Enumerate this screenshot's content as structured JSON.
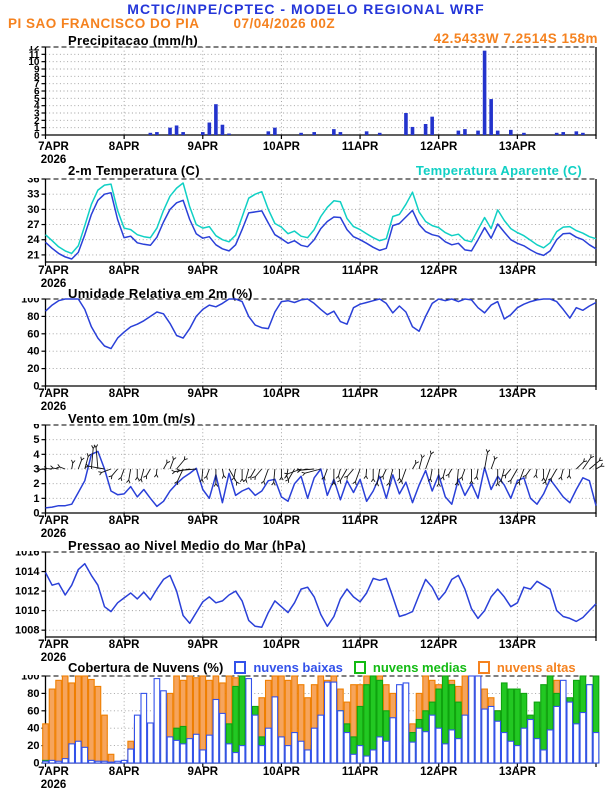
{
  "header": {
    "title": "MCTIC/INPE/CPTEC - MODELO REGIONAL WRF",
    "station": "PI SAO FRANCISCO DO PIA",
    "run": "07/04/2026 00Z",
    "location": "42.5433W 7.2514S 158m"
  },
  "colors": {
    "header_blue": "#2436d9",
    "orange_text": "#f5821f",
    "line_blue": "#2a40d8",
    "cyan": "#10d0c4",
    "bar_blue": "#2333cc",
    "cloud_low_border": "#3352ea",
    "cloud_mid_border": "#0fa30f",
    "cloud_mid_fill": "#22c822",
    "cloud_high_border": "#ef7f00",
    "cloud_high_fill": "#f6a45c",
    "grid": "#9b9b9b",
    "frame": "#000000"
  },
  "x_axis": {
    "labels": [
      "7APR",
      "8APR",
      "9APR",
      "10APR",
      "11APR",
      "12APR",
      "13APR"
    ],
    "year": "2026",
    "span_hours": 168,
    "step_hours": 2
  },
  "chart_data": [
    {
      "id": "precipitation",
      "type": "bar",
      "title": "Precipitacao (mm/h)",
      "ylabel": "mm/h",
      "ylim": [
        0,
        12
      ],
      "yticks": [
        0,
        1,
        2,
        3,
        4,
        5,
        6,
        7,
        8,
        9,
        10,
        11,
        12
      ],
      "bar_color": "#2333cc",
      "values": [
        0,
        0,
        0,
        0,
        0,
        0,
        0,
        0,
        0,
        0,
        0,
        0,
        0,
        0,
        0,
        0,
        0.3,
        0.4,
        0,
        1.0,
        1.3,
        0.4,
        0,
        0,
        0.4,
        1.7,
        4.2,
        1.4,
        0.2,
        0,
        0,
        0,
        0,
        0,
        0.5,
        1.0,
        0,
        0,
        0,
        0.3,
        0,
        0.4,
        0,
        0,
        0.8,
        0.4,
        0,
        0,
        0,
        0.5,
        0,
        0.3,
        0,
        0,
        0,
        3.0,
        1.1,
        0,
        1.5,
        2.5,
        0,
        0,
        0,
        0.6,
        0.8,
        0,
        0.6,
        11.5,
        4.9,
        0.6,
        0,
        0.7,
        0,
        0.3,
        0,
        0,
        0,
        0,
        0.3,
        0.4,
        0,
        0.5,
        0.3,
        0,
        0
      ]
    },
    {
      "id": "temperature",
      "type": "line",
      "title": "2-m Temperatura (C)",
      "right_label": "Temperatura Aparente (C)",
      "ylim": [
        19.6,
        36
      ],
      "yticks": [
        21,
        24,
        27,
        30,
        33,
        36
      ],
      "series": [
        {
          "name": "2-m Temperatura (C)",
          "color": "#2a40d8",
          "values": [
            23.5,
            22.3,
            21.3,
            20.6,
            20.2,
            21.5,
            25.0,
            29.0,
            31.8,
            33.0,
            33.3,
            28.0,
            24.4,
            24.7,
            23.4,
            23.1,
            22.9,
            24.5,
            27.5,
            30.0,
            31.3,
            31.8,
            28.0,
            25.2,
            24.3,
            24.6,
            23.0,
            22.2,
            21.8,
            23.0,
            26.0,
            29.3,
            29.5,
            29.7,
            27.3,
            25.0,
            24.2,
            23.3,
            23.8,
            22.9,
            22.6,
            24.0,
            26.2,
            27.6,
            28.5,
            28.4,
            26.0,
            24.6,
            24.0,
            23.3,
            22.5,
            21.9,
            22.3,
            26.8,
            27.2,
            28.5,
            29.8,
            27.0,
            25.6,
            25.0,
            24.7,
            23.6,
            23.0,
            23.3,
            22.0,
            21.8,
            24.0,
            26.4,
            24.3,
            27.1,
            25.5,
            24.0,
            23.3,
            22.8,
            22.0,
            21.3,
            20.9,
            21.8,
            24.0,
            25.2,
            25.3,
            24.5,
            24.0,
            23.0,
            22.2
          ]
        },
        {
          "name": "Temperatura Aparente (C)",
          "color": "#10d0c4",
          "values": [
            25.0,
            23.8,
            22.6,
            21.8,
            21.3,
            22.8,
            26.8,
            31.0,
            33.8,
            34.8,
            35.0,
            29.8,
            26.3,
            26.0,
            25.0,
            24.6,
            24.4,
            26.3,
            29.8,
            32.6,
            34.2,
            35.2,
            30.5,
            27.0,
            26.3,
            26.6,
            24.8,
            24.0,
            23.6,
            24.9,
            28.5,
            32.2,
            33.0,
            33.5,
            30.0,
            27.2,
            26.5,
            25.2,
            25.7,
            24.7,
            24.4,
            26.0,
            28.6,
            30.4,
            31.7,
            31.5,
            28.2,
            26.6,
            26.0,
            25.2,
            24.4,
            23.8,
            24.2,
            28.6,
            29.0,
            31.0,
            33.4,
            29.5,
            27.6,
            26.8,
            26.4,
            25.4,
            24.8,
            25.1,
            23.9,
            23.6,
            26.0,
            28.4,
            26.2,
            29.9,
            27.8,
            26.2,
            25.4,
            24.8,
            23.9,
            23.0,
            22.4,
            23.4,
            25.6,
            26.5,
            26.6,
            25.8,
            25.3,
            24.6,
            24.2
          ]
        }
      ]
    },
    {
      "id": "humidity",
      "type": "line",
      "title": "Umidade Relativa em 2m (%)",
      "ylim": [
        0,
        100
      ],
      "yticks": [
        0,
        20,
        40,
        60,
        80,
        100
      ],
      "series": [
        {
          "name": "Umidade Relativa em 2m (%)",
          "color": "#2a40d8",
          "values": [
            86,
            93,
            98,
            100,
            100,
            100,
            88,
            68,
            55,
            46,
            43,
            55,
            62,
            68,
            71,
            75,
            80,
            85,
            83,
            72,
            58,
            55,
            66,
            80,
            88,
            93,
            91,
            95,
            100,
            100,
            97,
            80,
            70,
            67,
            66,
            85,
            97,
            98,
            96,
            99,
            100,
            95,
            88,
            82,
            86,
            74,
            71,
            90,
            94,
            96,
            98,
            100,
            95,
            84,
            92,
            85,
            68,
            63,
            80,
            95,
            100,
            98,
            100,
            97,
            100,
            99,
            90,
            84,
            93,
            97,
            77,
            82,
            90,
            94,
            97,
            99,
            100,
            100,
            97,
            88,
            78,
            90,
            87,
            92,
            96
          ]
        }
      ]
    },
    {
      "id": "wind",
      "type": "wind",
      "title": "Vento em 10m (m/s)",
      "ylim": [
        0,
        6
      ],
      "yticks": [
        0,
        1,
        2,
        3,
        4,
        5,
        6
      ],
      "line_color": "#2a40d8",
      "arrow_color": "#111111",
      "arrow_base": 3,
      "speed": [
        0.35,
        0.4,
        0.5,
        0.5,
        0.6,
        1.4,
        2.2,
        4.0,
        4.2,
        3.0,
        1.5,
        1.25,
        1.3,
        1.8,
        1.1,
        1.6,
        1.0,
        0.45,
        0.8,
        1.5,
        2.0,
        2.4,
        2.7,
        3.05,
        1.6,
        1.0,
        2.6,
        0.7,
        2.7,
        1.2,
        1.5,
        1.7,
        1.2,
        1.5,
        2.2,
        2.3,
        1.1,
        0.8,
        2.0,
        2.5,
        1.0,
        2.4,
        3.0,
        1.2,
        2.3,
        0.9,
        2.2,
        1.4,
        2.3,
        0.8,
        1.5,
        2.5,
        1.0,
        2.6,
        1.3,
        2.1,
        0.7,
        1.9,
        2.9,
        1.5,
        2.6,
        1.1,
        0.6,
        2.3,
        1.2,
        2.0,
        1.0,
        3.1,
        1.6,
        2.5,
        1.9,
        1.0,
        2.2,
        2.4,
        1.0,
        0.6,
        1.3,
        2.3,
        1.7,
        1.1,
        0.7,
        1.6,
        2.4,
        2.2,
        0.5
      ],
      "dir_deg": [
        185,
        175,
        170,
        160,
        80,
        70,
        75,
        85,
        95,
        170,
        200,
        230,
        250,
        260,
        270,
        255,
        240,
        265,
        60,
        70,
        50,
        245,
        190,
        185,
        265,
        250,
        270,
        280,
        300,
        260,
        270,
        255,
        240,
        230,
        250,
        265,
        270,
        260,
        240,
        200,
        190,
        185,
        195,
        250,
        270,
        255,
        240,
        230,
        250,
        265,
        270,
        260,
        245,
        255,
        270,
        250,
        60,
        75,
        70,
        260,
        270,
        255,
        240,
        265,
        250,
        270,
        260,
        80,
        70,
        270,
        255,
        230,
        240,
        250,
        235,
        260,
        270,
        250,
        240,
        255,
        265,
        45,
        55,
        40,
        30
      ]
    },
    {
      "id": "pressure",
      "type": "line",
      "title": "Pressao ao Nivel Medio do Mar (hPa)",
      "ylim": [
        1007.3,
        1016
      ],
      "yticks": [
        1008,
        1010,
        1012,
        1014,
        1016
      ],
      "series": [
        {
          "name": "Pressao ao Nivel Medio do Mar (hPa)",
          "color": "#2a40d8",
          "values": [
            1013.9,
            1012.6,
            1012.8,
            1011.6,
            1012.6,
            1014.2,
            1014.8,
            1013.6,
            1012.6,
            1010.4,
            1009.9,
            1010.8,
            1011.3,
            1011.8,
            1011.2,
            1011.9,
            1011.1,
            1012.2,
            1013.2,
            1013.6,
            1012.0,
            1009.5,
            1008.7,
            1009.8,
            1010.9,
            1011.4,
            1010.8,
            1011.0,
            1011.6,
            1012.0,
            1011.0,
            1009.0,
            1008.4,
            1008.3,
            1009.8,
            1011.0,
            1010.4,
            1009.8,
            1010.8,
            1012.2,
            1012.4,
            1011.4,
            1009.6,
            1008.4,
            1009.4,
            1011.2,
            1012.2,
            1011.4,
            1010.9,
            1011.8,
            1013.3,
            1013.1,
            1013.3,
            1011.4,
            1009.4,
            1009.6,
            1009.9,
            1011.6,
            1013.2,
            1012.4,
            1011.1,
            1011.9,
            1013.2,
            1013.6,
            1012.2,
            1010.2,
            1009.2,
            1010.0,
            1011.4,
            1012.2,
            1011.4,
            1010.4,
            1010.8,
            1012.4,
            1012.2,
            1013.0,
            1012.6,
            1012.2,
            1010.0,
            1009.4,
            1009.2,
            1008.9,
            1009.3,
            1010.0,
            1010.7
          ]
        }
      ]
    },
    {
      "id": "clouds",
      "type": "bar3",
      "title": "Cobertura de Nuvens (%)",
      "ylim": [
        0,
        100
      ],
      "yticks": [
        0,
        20,
        40,
        60,
        80,
        100
      ],
      "series": [
        {
          "name": "nuvens baixas",
          "border": "#3352ea",
          "fill": "#ffffff",
          "values": [
            2,
            3,
            2,
            5,
            22,
            25,
            18,
            3,
            2,
            2,
            1,
            2,
            3,
            16,
            55,
            80,
            46,
            97,
            83,
            30,
            26,
            22,
            28,
            33,
            15,
            32,
            73,
            57,
            22,
            12,
            20,
            97,
            55,
            20,
            40,
            76,
            30,
            20,
            35,
            25,
            15,
            40,
            55,
            93,
            93,
            60,
            35,
            10,
            20,
            8,
            15,
            30,
            25,
            52,
            90,
            92,
            24,
            40,
            36,
            55,
            40,
            22,
            38,
            28,
            55,
            100,
            100,
            62,
            65,
            48,
            35,
            25,
            20,
            40,
            50,
            28,
            15,
            38,
            65,
            95,
            70,
            45,
            58,
            90,
            35
          ]
        },
        {
          "name": "nuvens medias",
          "border": "#0fa30f",
          "fill": "#22c822",
          "values": [
            3,
            0,
            0,
            0,
            0,
            0,
            0,
            0,
            0,
            0,
            0,
            0,
            0,
            0,
            0,
            0,
            6,
            10,
            8,
            12,
            40,
            42,
            20,
            10,
            12,
            8,
            10,
            25,
            45,
            88,
            100,
            95,
            65,
            30,
            15,
            18,
            10,
            5,
            8,
            15,
            10,
            20,
            35,
            50,
            40,
            60,
            45,
            30,
            65,
            90,
            100,
            95,
            60,
            30,
            15,
            20,
            35,
            50,
            60,
            70,
            85,
            100,
            90,
            70,
            45,
            30,
            25,
            35,
            50,
            60,
            92,
            85,
            85,
            80,
            55,
            70,
            90,
            100,
            80,
            60,
            75,
            95,
            100,
            90,
            100
          ]
        },
        {
          "name": "nuvens altas",
          "border": "#ef7f00",
          "fill": "#f6a45c",
          "values": [
            45,
            85,
            95,
            100,
            92,
            100,
            100,
            96,
            88,
            55,
            10,
            0,
            0,
            25,
            45,
            38,
            42,
            55,
            68,
            80,
            100,
            95,
            100,
            98,
            100,
            95,
            100,
            92,
            100,
            98,
            85,
            60,
            50,
            75,
            95,
            100,
            100,
            95,
            100,
            90,
            75,
            90,
            100,
            95,
            100,
            85,
            70,
            90,
            90,
            100,
            95,
            100,
            90,
            80,
            30,
            20,
            45,
            80,
            100,
            95,
            90,
            100,
            95,
            88,
            100,
            96,
            100,
            85,
            75,
            60,
            30,
            15,
            30,
            15,
            10,
            20,
            40,
            100,
            95,
            60,
            30,
            20,
            10,
            15,
            5
          ]
        }
      ]
    }
  ]
}
